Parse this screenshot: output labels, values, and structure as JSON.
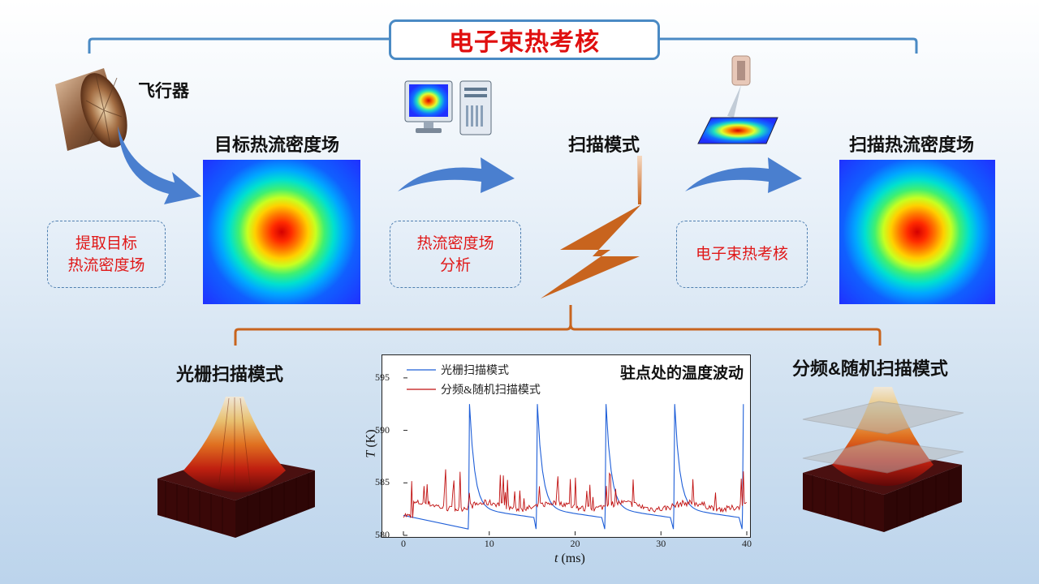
{
  "header": {
    "title": "电子束热考核"
  },
  "top": {
    "aircraft_label": "飞行器",
    "target_field_label": "目标热流密度场",
    "scan_mode_label": "扫描模式",
    "scan_field_label": "扫描热流密度场",
    "step1": [
      "提取目标",
      "热流密度场"
    ],
    "step2": [
      "热流密度场",
      "分析"
    ],
    "step3": "电子束热考核"
  },
  "bottom": {
    "raster_label": "光栅扫描模式",
    "freq_random_label": "分频&随机扫描模式"
  },
  "colors": {
    "accent_red": "#e01010",
    "frame_blue": "#4a8ac4",
    "bracket_orange": "#c8641e",
    "series_blue": "#1f5fd8",
    "series_red": "#c01010"
  },
  "chart_data": {
    "type": "line",
    "title": "驻点处的温度波动",
    "xlabel": "t (ms)",
    "ylabel": "T (K)",
    "xlim": [
      0,
      40
    ],
    "ylim": [
      580,
      597
    ],
    "xticks": [
      0,
      10,
      20,
      30,
      40
    ],
    "yticks": [
      580,
      585,
      590,
      595
    ],
    "legend_position": "top-left",
    "series": [
      {
        "name": "光栅扫描模式",
        "color": "#1f5fd8",
        "peaks_x": [
          7.6,
          15.5,
          23.5,
          31.5,
          39.5
        ],
        "peak_value": 592.5,
        "base_value": 582.0,
        "trough_value": 580.5
      },
      {
        "name": "分频&随机扫描模式",
        "color": "#c01010",
        "mean_value": 582.8,
        "spike_max": 586.3
      }
    ]
  }
}
